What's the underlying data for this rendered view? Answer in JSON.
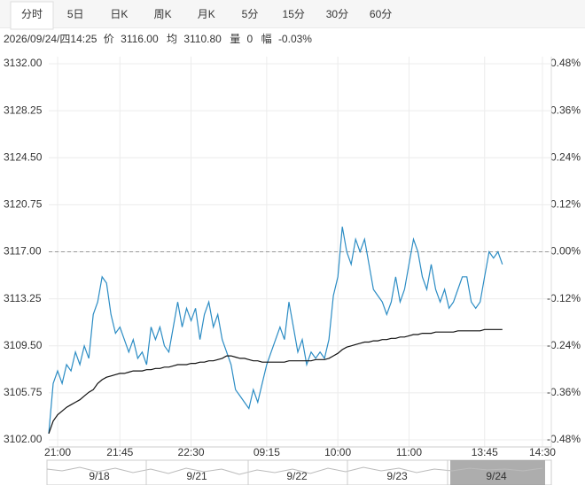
{
  "tabs": [
    "分时",
    "5日",
    "日K",
    "周K",
    "月K",
    "5分",
    "15分",
    "30分",
    "60分"
  ],
  "active_tab": 0,
  "header": {
    "datetime": "2026/09/24/四14:25",
    "price_label": "价",
    "price": "3116.00",
    "avg_label": "均",
    "avg": "3110.80",
    "vol_label": "量",
    "vol": "0",
    "range_label": "幅",
    "range": "-0.03%"
  },
  "chart_data": {
    "type": "line",
    "reference_line": 3117,
    "up_color": "#e00000",
    "down_color": "#009900",
    "neutral_color": "#222222",
    "grid": true,
    "xlim": [
      0,
      113
    ],
    "xticks": [
      {
        "value": 2,
        "label": "21:00"
      },
      {
        "value": 16,
        "label": "21:45"
      },
      {
        "value": 32,
        "label": "22:30"
      },
      {
        "value": 49,
        "label": "09:15"
      },
      {
        "value": 65,
        "label": "10:00"
      },
      {
        "value": 81,
        "label": "11:00"
      },
      {
        "value": 98,
        "label": "13:45"
      },
      {
        "value": 111,
        "label": "14:30"
      }
    ],
    "ylim": [
      3102,
      3132
    ],
    "yticks": [
      {
        "value": 3102,
        "label": "3102.00"
      },
      {
        "value": 3105.75,
        "label": "3105.75"
      },
      {
        "value": 3109.5,
        "label": "3109.50"
      },
      {
        "value": 3113.25,
        "label": "3113.25"
      },
      {
        "value": 3117,
        "label": "3117.00"
      },
      {
        "value": 3120.75,
        "label": "3120.75"
      },
      {
        "value": 3124.5,
        "label": "3124.50"
      },
      {
        "value": 3128.25,
        "label": "3128.25"
      },
      {
        "value": 3132,
        "label": "3132.00"
      }
    ],
    "y2lim": [
      -0.48,
      0.48
    ],
    "y2ticks": [
      {
        "value": -0.48,
        "label": "-0.48%"
      },
      {
        "value": -0.36,
        "label": "-0.36%"
      },
      {
        "value": -0.24,
        "label": "-0.24%"
      },
      {
        "value": -0.12,
        "label": "-0.12%"
      },
      {
        "value": 0,
        "label": "0.00%"
      },
      {
        "value": 0.12,
        "label": "0.12%"
      },
      {
        "value": 0.24,
        "label": "0.24%"
      },
      {
        "value": 0.36,
        "label": "0.36%"
      },
      {
        "value": 0.48,
        "label": "0.48%"
      }
    ],
    "series": [
      {
        "color": "#2b8cc4",
        "values": [
          3102.5,
          3106.5,
          3107.5,
          3106.5,
          3108,
          3107.5,
          3109,
          3108,
          3109.5,
          3108.5,
          3112,
          3113,
          3115,
          3114.5,
          3112,
          3110.5,
          3111,
          3110,
          3109,
          3110,
          3108.5,
          3109,
          3108,
          3111,
          3110,
          3111,
          3109.5,
          3109,
          3111,
          3113,
          3111,
          3112.5,
          3111.5,
          3112.5,
          3110,
          3112,
          3113,
          3111,
          3112,
          3110,
          3109,
          3108,
          3106,
          3105.5,
          3105,
          3104.5,
          3106,
          3105,
          3106.5,
          3108,
          3109,
          3110,
          3111,
          3110,
          3113,
          3111,
          3109,
          3110,
          3108,
          3109,
          3108.5,
          3109,
          3108.5,
          3110,
          3113.5,
          3115,
          3119,
          3117,
          3116,
          3118,
          3117,
          3118,
          3116,
          3114,
          3113.5,
          3113,
          3112,
          3113,
          3115,
          3113,
          3114,
          3116,
          3118,
          3117,
          3115,
          3114,
          3116,
          3114,
          3113,
          3114,
          3112.5,
          3113,
          3114,
          3115,
          3115,
          3113,
          3112.5,
          3113,
          3115,
          3117,
          3116.5,
          3117,
          3116
        ]
      },
      {
        "color": "#111111",
        "values": [
          3102.5,
          3103.5,
          3104,
          3104.3,
          3104.6,
          3104.8,
          3105,
          3105.2,
          3105.5,
          3105.8,
          3106,
          3106.5,
          3106.8,
          3107,
          3107.1,
          3107.2,
          3107.3,
          3107.3,
          3107.4,
          3107.5,
          3107.5,
          3107.5,
          3107.6,
          3107.6,
          3107.7,
          3107.7,
          3107.8,
          3107.8,
          3107.9,
          3108,
          3108,
          3108,
          3108.1,
          3108.1,
          3108.2,
          3108.2,
          3108.3,
          3108.3,
          3108.4,
          3108.5,
          3108.7,
          3108.7,
          3108.6,
          3108.5,
          3108.5,
          3108.4,
          3108.3,
          3108.3,
          3108.2,
          3108.2,
          3108.2,
          3108.2,
          3108.2,
          3108.2,
          3108.3,
          3108.3,
          3108.3,
          3108.3,
          3108.3,
          3108.3,
          3108.4,
          3108.4,
          3108.4,
          3108.5,
          3108.7,
          3108.9,
          3109.2,
          3109.4,
          3109.5,
          3109.6,
          3109.7,
          3109.8,
          3109.8,
          3109.9,
          3109.9,
          3110,
          3110,
          3110.1,
          3110.1,
          3110.2,
          3110.2,
          3110.3,
          3110.4,
          3110.4,
          3110.5,
          3110.5,
          3110.5,
          3110.6,
          3110.6,
          3110.6,
          3110.6,
          3110.6,
          3110.7,
          3110.7,
          3110.7,
          3110.7,
          3110.7,
          3110.7,
          3110.8,
          3110.8,
          3110.8,
          3110.8,
          3110.8
        ]
      }
    ]
  },
  "navigator": {
    "labels": [
      "9/18",
      "9/21",
      "9/22",
      "9/23",
      "9/24"
    ]
  }
}
